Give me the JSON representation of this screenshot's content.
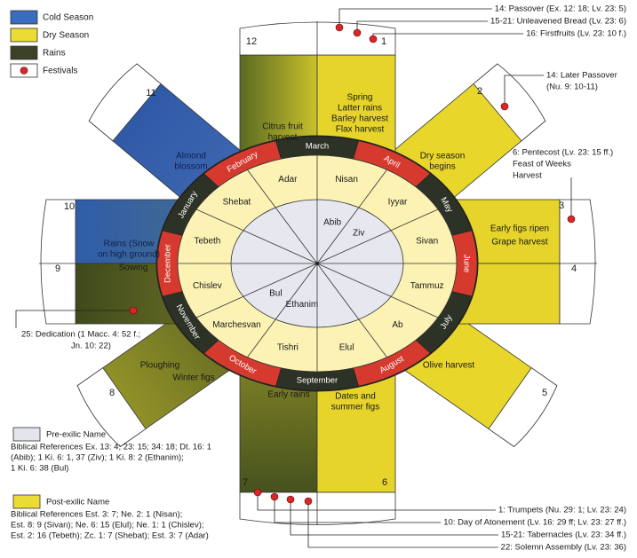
{
  "legend": [
    {
      "label": "Cold Season"
    },
    {
      "label": "Dry Season"
    },
    {
      "label": "Rains"
    },
    {
      "label": "Festivals"
    }
  ],
  "spokes": [
    {
      "number": 1,
      "text": [
        "Spring",
        "Latter rains",
        "Barley harvest",
        "Flax harvest"
      ]
    },
    {
      "number": 2,
      "text": [
        "Dry season",
        "begins"
      ]
    },
    {
      "number": 3,
      "text": [
        "Early figs ripen"
      ]
    },
    {
      "number": 4,
      "text": [
        "Grape harvest"
      ]
    },
    {
      "number": 5,
      "text": [
        "Olive harvest"
      ]
    },
    {
      "number": 6,
      "text": [
        "Dates and",
        "summer figs"
      ]
    },
    {
      "number": 7,
      "text": [
        "Early rains"
      ]
    },
    {
      "number": 8,
      "text": [
        "Ploughing",
        "Winter figs"
      ]
    },
    {
      "number": 9,
      "text": [
        "Sowing"
      ]
    },
    {
      "number": 10,
      "text": [
        "Rains (Snow",
        "on high ground)"
      ]
    },
    {
      "number": 11,
      "text": [
        "Almond",
        "blossom"
      ]
    },
    {
      "number": 12,
      "text": [
        "Citrus fruit",
        "harvest"
      ]
    }
  ],
  "gregorian_months": [
    "March",
    "April",
    "May",
    "June",
    "July",
    "August",
    "September",
    "October",
    "November",
    "December",
    "January",
    "February"
  ],
  "post_exilic_months": [
    "Nisan",
    "Iyyar",
    "Sivan",
    "Tammuz",
    "Ab",
    "Elul",
    "Tishri",
    "Marchesvan",
    "Chislev",
    "Tebeth",
    "Shebat",
    "Adar"
  ],
  "pre_exilic_months": [
    "Abib",
    "Ziv",
    "Ethanim",
    "Bul"
  ],
  "festivals": [
    {
      "lines": [
        "14: Passover (Ex. 12: 18; Lv. 23: 5)"
      ]
    },
    {
      "lines": [
        "15-21: Unleavened Bread (Lv. 23: 6)"
      ]
    },
    {
      "lines": [
        "16: Firstfruits (Lv. 23: 10 f.)"
      ]
    },
    {
      "lines": [
        "14: Later Passover",
        "(Nu. 9: 10-11)"
      ]
    },
    {
      "lines": [
        "6: Pentecost (Lv. 23: 15 ff.)",
        "Feast of Weeks",
        "Harvest"
      ]
    },
    {
      "lines": [
        "25: Dedication (1 Macc. 4: 52 f.;",
        "Jn. 10: 22)"
      ]
    },
    {
      "lines": [
        "1: Trumpets (Nu. 29: 1; Lv. 23: 24)"
      ]
    },
    {
      "lines": [
        "10: Day of Atonement (Lv. 16: 29 ff; Lv. 23: 27 ff.)"
      ]
    },
    {
      "lines": [
        "15-21: Tabernacles (Lv. 23: 34 ff.)"
      ]
    },
    {
      "lines": [
        "22: Solemn Assembly (Lv. 23: 36)"
      ]
    }
  ],
  "notes": {
    "pre_exilic": {
      "title": "Pre-exilic Name",
      "references": [
        "Biblical References Ex. 13: 4; 23: 15; 34: 18; Dt. 16: 1",
        "(Abib); 1 Ki. 6: 1, 37 (Ziv); 1 Ki. 8: 2 (Ethanim);",
        "1 Ki. 6: 38 (Bul)"
      ]
    },
    "post_exilic": {
      "title": "Post-exilic Name",
      "references": [
        "Biblical References Est. 3: 7; Ne. 2: 1 (Nisan);",
        "Est. 8: 9 (Sivan); Ne. 6: 15 (Elul); Ne. 1: 1 (Chislev);",
        "Est. 2: 16 (Tebeth); Zc. 1: 7 (Shebat); Est. 3: 7 (Adar)"
      ]
    }
  }
}
